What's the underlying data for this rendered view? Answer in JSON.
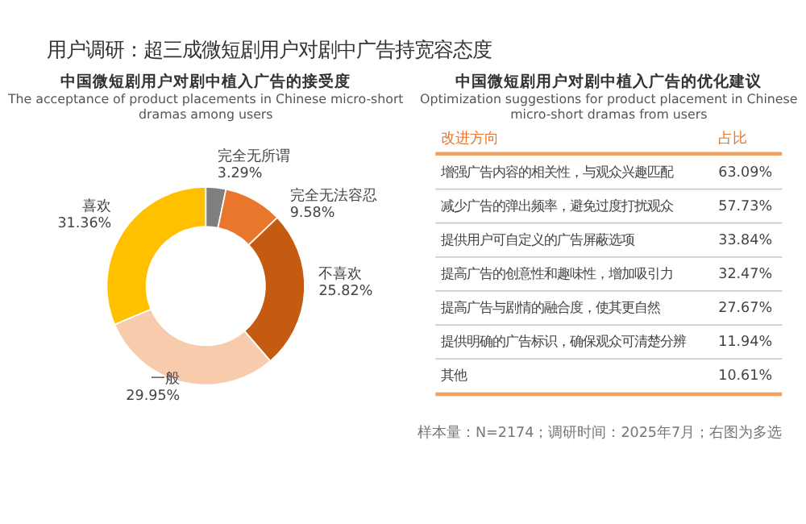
{
  "chart_data": [
    {
      "type": "other",
      "title": "用户调研：超三成微短剧用户对剧中广告持宽容态度"
    },
    {
      "type": "donut",
      "title": "中国微短剧用户对剧中植入广告的接受度",
      "subtitle": "The acceptance of product placements in Chinese micro-short dramas among users",
      "categories": [
        "完全无所谓",
        "完全无法容忍",
        "不喜欢",
        "一般",
        "喜欢"
      ],
      "values": [
        3.29,
        9.58,
        25.82,
        29.95,
        31.36
      ],
      "value_labels": [
        "3.29%",
        "9.58%",
        "25.82%",
        "29.95%",
        "31.36%"
      ],
      "colors": [
        "#7f7f7f",
        "#e8762d",
        "#c55a11",
        "#f8cbad",
        "#ffc000"
      ]
    },
    {
      "type": "other",
      "title": "中国微短剧用户对剧中植入广告的优化建议",
      "subtitle": "Optimization suggestions for product placement in Chinese micro-short dramas from users",
      "xlabel": "改进方向",
      "ylabel": "占比",
      "categories": [
        "增强广告内容的相关性，与观众兴趣匹配",
        "减少广告的弹出频率，避免过度打扰观众",
        "提供用户可自定义的广告屏蔽选项",
        "提高广告的创意性和趣味性，增加吸引力",
        "提高广告与剧情的融合度，使其更自然",
        "提供明确的广告标识，确保观众可清楚分辨",
        "其他"
      ],
      "values": [
        63.09,
        57.73,
        33.84,
        32.47,
        27.67,
        11.94,
        10.61
      ],
      "value_labels": [
        "63.09%",
        "57.73%",
        "33.84%",
        "32.47%",
        "27.67%",
        "11.94%",
        "10.61%"
      ],
      "annotations": [
        "样本量：N=2174；调研时间：2025年7月；右图为多选"
      ]
    }
  ]
}
